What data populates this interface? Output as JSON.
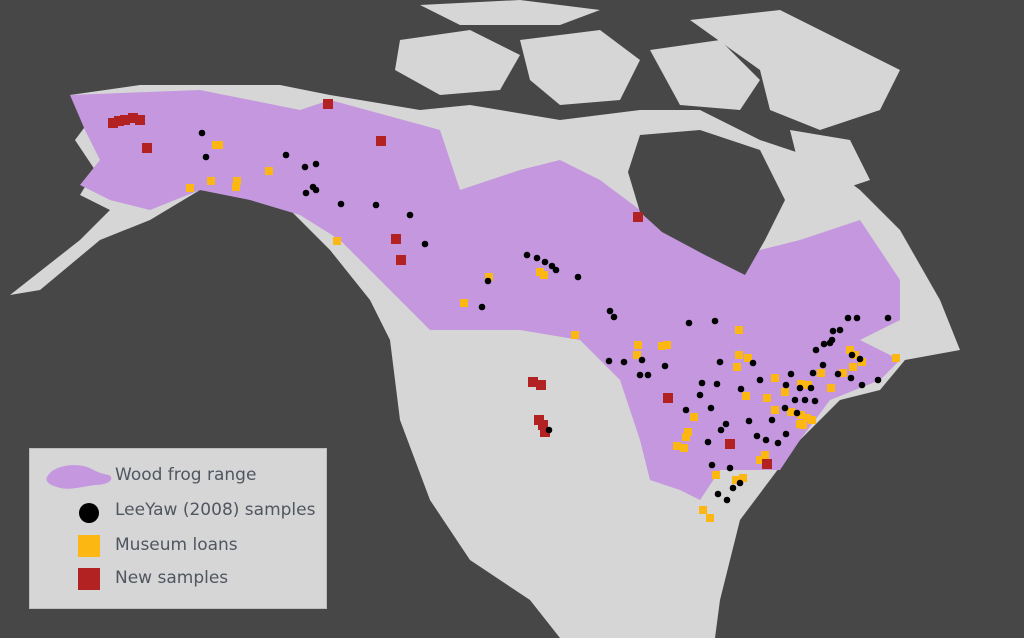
{
  "map": {
    "colors": {
      "ocean": "#474747",
      "land": "#d6d6d6",
      "range": "#c497df",
      "leeyaw": "#000000",
      "museum": "#fcb713",
      "new": "#b22222"
    }
  },
  "legend": {
    "items": [
      {
        "label": "Wood frog range",
        "symbol": "range-blob",
        "color": "#c497df"
      },
      {
        "label": "LeeYaw (2008) samples",
        "symbol": "circle",
        "color": "#000000"
      },
      {
        "label": "Museum loans",
        "symbol": "square",
        "color": "#fcb713"
      },
      {
        "label": "New samples",
        "symbol": "square",
        "color": "#b22222"
      }
    ]
  }
}
